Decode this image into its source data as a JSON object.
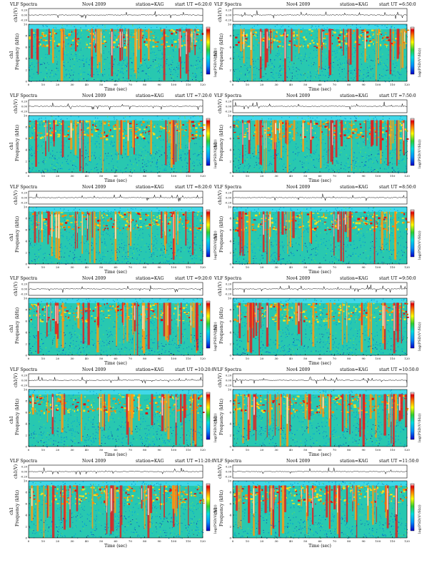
{
  "page": {
    "header_title": "VLF Spectra",
    "date": "Nov4 2009",
    "station": "station=KAG",
    "start_prefix": "start  UT =",
    "x_label": "Time  (sec)",
    "y_label_top": "ch1(V)",
    "y_label_spec": "Frequency  (kHz)",
    "ch_label": "ch1",
    "colorbar_label": "log(PSD(V²/Hz))"
  },
  "chart_data": [
    {
      "type": "heatmap",
      "title": "VLF Spectra  Nov4 2009  station=KAG  start UT =6:20:0",
      "start_ut": "6:20:0",
      "xlabel": "Time (sec)",
      "ylabel": "Frequency (kHz)",
      "xlim": [
        0,
        120
      ],
      "ylim": [
        0,
        10
      ],
      "x_ticks": [
        0,
        10,
        20,
        30,
        40,
        50,
        60,
        70,
        80,
        90,
        100,
        110,
        120
      ],
      "y_ticks": [
        0,
        2,
        4,
        6,
        8,
        10
      ],
      "ch1_ticks": [
        "0.20",
        "0.00",
        "-0.20"
      ],
      "colorbar": "log(PSD(V²/Hz))"
    },
    {
      "type": "heatmap",
      "title": "VLF Spectra  Nov4 2009  station=KAG  start UT =6:50:0",
      "start_ut": "6:50:0",
      "xlabel": "Time (sec)",
      "ylabel": "Frequency (kHz)",
      "xlim": [
        0,
        120
      ],
      "ylim": [
        0,
        10
      ],
      "x_ticks": [
        0,
        10,
        20,
        30,
        40,
        50,
        60,
        70,
        80,
        90,
        100,
        110,
        120
      ],
      "y_ticks": [
        0,
        2,
        4,
        6,
        8,
        10
      ],
      "ch1_ticks": [
        "0.20",
        "0.00",
        "-0.20"
      ],
      "colorbar": "log(PSD(V²/Hz))"
    },
    {
      "type": "heatmap",
      "title": "VLF Spectra  Nov4 2009  station=KAG  start UT =7:20:0",
      "start_ut": "7:20:0",
      "xlabel": "Time (sec)",
      "ylabel": "Frequency (kHz)",
      "xlim": [
        0,
        120
      ],
      "ylim": [
        0,
        10
      ],
      "x_ticks": [
        0,
        10,
        20,
        30,
        40,
        50,
        60,
        70,
        80,
        90,
        100,
        110,
        120
      ],
      "y_ticks": [
        0,
        2,
        4,
        6,
        8,
        10
      ],
      "ch1_ticks": [
        "0.20",
        "0.00",
        "-0.20"
      ],
      "colorbar": "log(PSD(V²/Hz))"
    },
    {
      "type": "heatmap",
      "title": "VLF Spectra  Nov4 2009  station=KAG  start UT =7:50:0",
      "start_ut": "7:50:0",
      "xlabel": "Time (sec)",
      "ylabel": "Frequency (kHz)",
      "xlim": [
        0,
        120
      ],
      "ylim": [
        0,
        10
      ],
      "x_ticks": [
        0,
        10,
        20,
        30,
        40,
        50,
        60,
        70,
        80,
        90,
        100,
        110,
        120
      ],
      "y_ticks": [
        0,
        2,
        4,
        6,
        8,
        10
      ],
      "ch1_ticks": [
        "0.20",
        "0.00",
        "-0.20"
      ],
      "colorbar": "log(PSD(V²/Hz))"
    },
    {
      "type": "heatmap",
      "title": "VLF Spectra  Nov4 2009  station=KAG  start UT =8:20:0",
      "start_ut": "8:20:0",
      "xlabel": "Time (sec)",
      "ylabel": "Frequency (kHz)",
      "xlim": [
        0,
        120
      ],
      "ylim": [
        0,
        10
      ],
      "x_ticks": [
        0,
        10,
        20,
        30,
        40,
        50,
        60,
        70,
        80,
        90,
        100,
        110,
        120
      ],
      "y_ticks": [
        0,
        2,
        4,
        6,
        8,
        10
      ],
      "ch1_ticks": [
        "0.20",
        "0.00",
        "-0.20"
      ],
      "colorbar": "log(PSD(V²/Hz))"
    },
    {
      "type": "heatmap",
      "title": "VLF Spectra  Nov4 2009  station=KAG  start UT =8:50:0",
      "start_ut": "8:50:0",
      "xlabel": "Time (sec)",
      "ylabel": "Frequency (kHz)",
      "xlim": [
        0,
        120
      ],
      "ylim": [
        0,
        10
      ],
      "x_ticks": [
        0,
        10,
        20,
        30,
        40,
        50,
        60,
        70,
        80,
        90,
        100,
        110,
        120
      ],
      "y_ticks": [
        0,
        2,
        4,
        6,
        8,
        10
      ],
      "ch1_ticks": [
        "0.20",
        "0.00",
        "-0.20"
      ],
      "colorbar": "log(PSD(V²/Hz))"
    },
    {
      "type": "heatmap",
      "title": "VLF Spectra  Nov4 2009  station=KAG  start UT =9:20:0",
      "start_ut": "9:20:0",
      "xlabel": "Time (sec)",
      "ylabel": "Frequency (kHz)",
      "xlim": [
        0,
        120
      ],
      "ylim": [
        0,
        10
      ],
      "x_ticks": [
        0,
        10,
        20,
        30,
        40,
        50,
        60,
        70,
        80,
        90,
        100,
        110,
        120
      ],
      "y_ticks": [
        0,
        2,
        4,
        6,
        8,
        10
      ],
      "ch1_ticks": [
        "0.20",
        "0.00",
        "-0.20"
      ],
      "colorbar": "log(PSD(V²/Hz))"
    },
    {
      "type": "heatmap",
      "title": "VLF Spectra  Nov4 2009  station=KAG  start UT =9:50:0",
      "start_ut": "9:50:0",
      "xlabel": "Time (sec)",
      "ylabel": "Frequency (kHz)",
      "xlim": [
        0,
        120
      ],
      "ylim": [
        0,
        10
      ],
      "x_ticks": [
        0,
        10,
        20,
        30,
        40,
        50,
        60,
        70,
        80,
        90,
        100,
        110,
        120
      ],
      "y_ticks": [
        0,
        2,
        4,
        6,
        8,
        10
      ],
      "ch1_ticks": [
        "0.20",
        "0.00",
        "-0.20"
      ],
      "colorbar": "log(PSD(V²/Hz))"
    },
    {
      "type": "heatmap",
      "title": "VLF Spectra  Nov4 2009  station=KAG  start UT =10:20:0",
      "start_ut": "10:20:0",
      "xlabel": "Time (sec)",
      "ylabel": "Frequency (kHz)",
      "xlim": [
        0,
        120
      ],
      "ylim": [
        0,
        10
      ],
      "x_ticks": [
        0,
        10,
        20,
        30,
        40,
        50,
        60,
        70,
        80,
        90,
        100,
        110,
        120
      ],
      "y_ticks": [
        0,
        2,
        4,
        6,
        8,
        10
      ],
      "ch1_ticks": [
        "0.20",
        "0.00",
        "-0.20"
      ],
      "colorbar": "log(PSD(V²/Hz))"
    },
    {
      "type": "heatmap",
      "title": "VLF Spectra  Nov4 2009  station=KAG  start UT =10:50:0",
      "start_ut": "10:50:0",
      "xlabel": "Time (sec)",
      "ylabel": "Frequency (kHz)",
      "xlim": [
        0,
        120
      ],
      "ylim": [
        0,
        10
      ],
      "x_ticks": [
        0,
        10,
        20,
        30,
        40,
        50,
        60,
        70,
        80,
        90,
        100,
        110,
        120
      ],
      "y_ticks": [
        0,
        2,
        4,
        6,
        8,
        10
      ],
      "ch1_ticks": [
        "0.20",
        "0.00",
        "-0.20"
      ],
      "colorbar": "log(PSD(V²/Hz))"
    },
    {
      "type": "heatmap",
      "title": "VLF Spectra  Nov4 2009  station=KAG  start UT =11:20:0",
      "start_ut": "11:20:0",
      "xlabel": "Time (sec)",
      "ylabel": "Frequency (kHz)",
      "xlim": [
        0,
        120
      ],
      "ylim": [
        0,
        10
      ],
      "x_ticks": [
        0,
        10,
        20,
        30,
        40,
        50,
        60,
        70,
        80,
        90,
        100,
        110,
        120
      ],
      "y_ticks": [
        0,
        2,
        4,
        6,
        8,
        10
      ],
      "ch1_ticks": [
        "0.20",
        "0.00",
        "-0.20"
      ],
      "colorbar": "log(PSD(V²/Hz))"
    },
    {
      "type": "heatmap",
      "title": "VLF Spectra  Nov4 2009  station=KAG  start UT =11:50:0",
      "start_ut": "11:50:0",
      "xlabel": "Time (sec)",
      "ylabel": "Frequency (kHz)",
      "xlim": [
        0,
        120
      ],
      "ylim": [
        0,
        10
      ],
      "x_ticks": [
        0,
        10,
        20,
        30,
        40,
        50,
        60,
        70,
        80,
        90,
        100,
        110,
        120
      ],
      "y_ticks": [
        0,
        2,
        4,
        6,
        8,
        10
      ],
      "ch1_ticks": [
        "0.20",
        "0.00",
        "-0.20"
      ],
      "colorbar": "log(PSD(V²/Hz))"
    }
  ]
}
